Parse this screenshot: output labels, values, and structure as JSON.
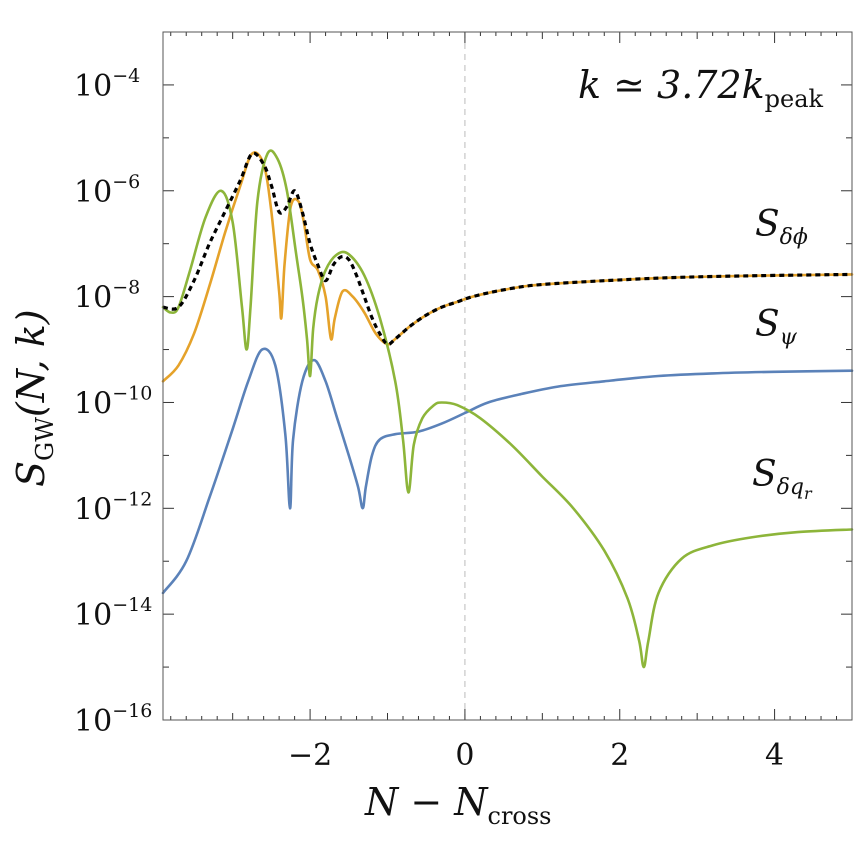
{
  "chart_data": {
    "type": "line",
    "title": "",
    "annotation": {
      "text": "k ≃ 3.72k",
      "sub": "peak",
      "position": "top-right"
    },
    "xlabel": {
      "main": "N − N",
      "sub": "cross"
    },
    "ylabel": {
      "main": "S",
      "sub": "GW",
      "rest": "(N, k)"
    },
    "xlim": [
      -3.9,
      5.0
    ],
    "ylim_log10": [
      -16,
      -13
    ],
    "y_scale": "log",
    "xticks": [
      -2,
      0,
      2,
      4
    ],
    "xtick_labels": [
      "−2",
      "0",
      "2",
      "4"
    ],
    "yticks_log10": [
      -16,
      -14,
      -12,
      -10,
      -8,
      -6,
      -4
    ],
    "ytick_base": "10",
    "ytick_exponents": [
      "−16",
      "−14",
      "−12",
      "−10",
      "−8",
      "−6",
      "−4"
    ],
    "vertical_reference_line": {
      "x": 0,
      "style": "dashed",
      "color": "#bbbbbb"
    },
    "grid": false,
    "series": [
      {
        "name": "S",
        "label_sub": "δϕ",
        "color": "#e5a22a",
        "x": [
          -3.9,
          -3.7,
          -3.5,
          -3.3,
          -3.1,
          -2.9,
          -2.75,
          -2.6,
          -2.5,
          -2.4,
          -2.37,
          -2.33,
          -2.25,
          -2.15,
          -2.08,
          -2.0,
          -1.9,
          -1.8,
          -1.73,
          -1.68,
          -1.58,
          -1.45,
          -1.3,
          -1.15,
          -1.0,
          -0.9,
          -0.7,
          -0.5,
          -0.3,
          -0.1,
          0.1,
          0.4,
          0.8,
          1.2,
          1.8,
          2.5,
          3.2,
          4.0,
          5.0
        ],
        "log10y": [
          -9.6,
          -9.3,
          -8.7,
          -7.8,
          -6.8,
          -5.9,
          -5.3,
          -5.5,
          -6.4,
          -7.9,
          -8.4,
          -7.4,
          -6.3,
          -6.2,
          -6.6,
          -7.3,
          -7.5,
          -8.0,
          -8.8,
          -8.4,
          -7.9,
          -8.0,
          -8.3,
          -8.7,
          -8.9,
          -8.8,
          -8.55,
          -8.35,
          -8.2,
          -8.1,
          -8.0,
          -7.9,
          -7.8,
          -7.75,
          -7.7,
          -7.65,
          -7.62,
          -7.6,
          -7.58
        ]
      },
      {
        "name": "S",
        "label_sub": "ψ",
        "color": "#5b82b9",
        "x": [
          -3.9,
          -3.6,
          -3.3,
          -3.0,
          -2.8,
          -2.62,
          -2.45,
          -2.32,
          -2.26,
          -2.22,
          -2.1,
          -1.95,
          -1.8,
          -1.65,
          -1.5,
          -1.38,
          -1.32,
          -1.28,
          -1.2,
          -1.1,
          -0.9,
          -0.6,
          -0.3,
          0.0,
          0.3,
          0.7,
          1.2,
          1.8,
          2.5,
          3.2,
          4.0,
          5.0
        ],
        "log10y": [
          -13.6,
          -13.0,
          -11.8,
          -10.5,
          -9.6,
          -9.0,
          -9.3,
          -10.6,
          -12.0,
          -10.7,
          -9.6,
          -9.2,
          -9.6,
          -10.3,
          -11.0,
          -11.6,
          -12.0,
          -11.6,
          -11.0,
          -10.7,
          -10.6,
          -10.55,
          -10.4,
          -10.2,
          -10.0,
          -9.85,
          -9.7,
          -9.6,
          -9.5,
          -9.45,
          -9.42,
          -9.4
        ]
      },
      {
        "name": "S",
        "label_sub": "δq",
        "label_subsub": "r",
        "color": "#8db53a",
        "x": [
          -3.9,
          -3.8,
          -3.7,
          -3.55,
          -3.35,
          -3.15,
          -3.0,
          -2.88,
          -2.82,
          -2.77,
          -2.68,
          -2.55,
          -2.42,
          -2.3,
          -2.18,
          -2.1,
          -2.04,
          -2.0,
          -1.96,
          -1.9,
          -1.8,
          -1.65,
          -1.5,
          -1.3,
          -1.1,
          -0.9,
          -0.8,
          -0.73,
          -0.66,
          -0.55,
          -0.4,
          -0.3,
          -0.1,
          0.2,
          0.6,
          1.0,
          1.4,
          1.8,
          2.1,
          2.25,
          2.31,
          2.37,
          2.5,
          2.8,
          3.2,
          3.7,
          4.3,
          5.0
        ],
        "log10y": [
          -8.2,
          -8.3,
          -8.2,
          -7.5,
          -6.5,
          -6.0,
          -6.6,
          -8.2,
          -9.0,
          -8.2,
          -6.2,
          -5.3,
          -5.4,
          -6.0,
          -7.2,
          -8.0,
          -8.8,
          -9.5,
          -8.6,
          -8.0,
          -7.5,
          -7.2,
          -7.2,
          -7.6,
          -8.4,
          -9.6,
          -10.7,
          -11.7,
          -10.8,
          -10.3,
          -10.05,
          -10.0,
          -10.05,
          -10.3,
          -10.8,
          -11.4,
          -12.0,
          -12.8,
          -13.7,
          -14.5,
          -15.0,
          -14.5,
          -13.6,
          -12.95,
          -12.7,
          -12.55,
          -12.45,
          -12.4
        ]
      },
      {
        "name": "",
        "color": "#000000",
        "style": "dashed",
        "x": [
          -3.9,
          -3.7,
          -3.5,
          -3.3,
          -3.1,
          -2.9,
          -2.75,
          -2.6,
          -2.5,
          -2.4,
          -2.3,
          -2.2,
          -2.1,
          -2.0,
          -1.9,
          -1.8,
          -1.7,
          -1.6,
          -1.5,
          -1.4,
          -1.3,
          -1.2,
          -1.1,
          -1.0,
          -0.9,
          -0.7,
          -0.5,
          -0.3,
          -0.1,
          0.1,
          0.4,
          0.8,
          1.2,
          1.8,
          2.5,
          3.2,
          4.0,
          5.0
        ],
        "log10y": [
          -8.2,
          -8.2,
          -7.7,
          -7.0,
          -6.4,
          -5.8,
          -5.3,
          -5.5,
          -5.9,
          -6.4,
          -6.3,
          -6.0,
          -6.4,
          -7.0,
          -7.4,
          -7.7,
          -7.4,
          -7.25,
          -7.3,
          -7.6,
          -8.0,
          -8.4,
          -8.7,
          -8.9,
          -8.8,
          -8.55,
          -8.35,
          -8.2,
          -8.1,
          -8.0,
          -7.9,
          -7.8,
          -7.75,
          -7.7,
          -7.65,
          -7.62,
          -7.6,
          -7.58
        ]
      }
    ]
  }
}
